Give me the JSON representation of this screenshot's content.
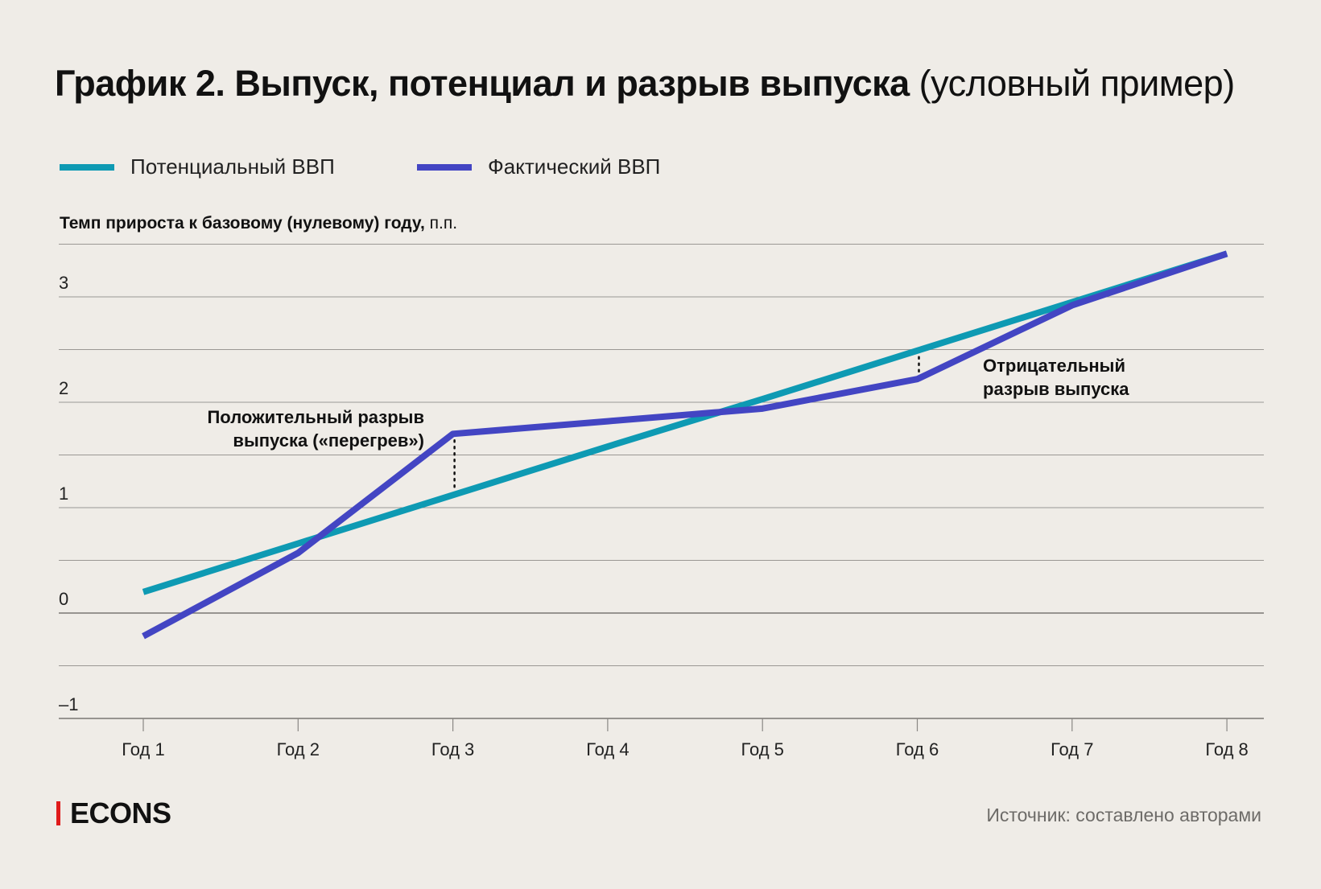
{
  "title": {
    "bold": "График 2. Выпуск, потенциал и разрыв выпуска",
    "light": "(условный пример)"
  },
  "legend": [
    {
      "label": "Потенциальный ВВП",
      "color": "#0e9ab3"
    },
    {
      "label": "Фактический ВВП",
      "color": "#4345c3"
    }
  ],
  "footer": {
    "logo": "ECONS",
    "source": "Источник: составлено авторами"
  },
  "chart_data": {
    "type": "line",
    "ylabel_bold": "Темп прироста к базовому (нулевому) году,",
    "ylabel_unit": "п.п.",
    "categories": [
      "Год 1",
      "Год 2",
      "Год 3",
      "Год 4",
      "Год 5",
      "Год 6",
      "Год 7",
      "Год 8"
    ],
    "ylim": [
      -1,
      3.5
    ],
    "yticks": [
      -1,
      0,
      1,
      2,
      3
    ],
    "ytick_labels": [
      "–1",
      "0",
      "1",
      "2",
      "3"
    ],
    "grid_step": 0.5,
    "series": [
      {
        "name": "Потенциальный ВВП",
        "color": "#0e9ab3",
        "values": [
          0.2,
          0.66,
          1.12,
          1.58,
          2.03,
          2.49,
          2.95,
          3.41
        ]
      },
      {
        "name": "Фактический ВВП",
        "color": "#4345c3",
        "values": [
          -0.22,
          0.57,
          1.7,
          1.82,
          1.94,
          2.22,
          2.92,
          3.41
        ]
      }
    ],
    "annotations": [
      {
        "lines": [
          "Положительный разрыв",
          "выпуска («перегрев»)"
        ],
        "category_index": 2
      },
      {
        "lines": [
          "Отрицательный",
          "разрыв выпуска"
        ],
        "category_index": 5
      }
    ]
  }
}
